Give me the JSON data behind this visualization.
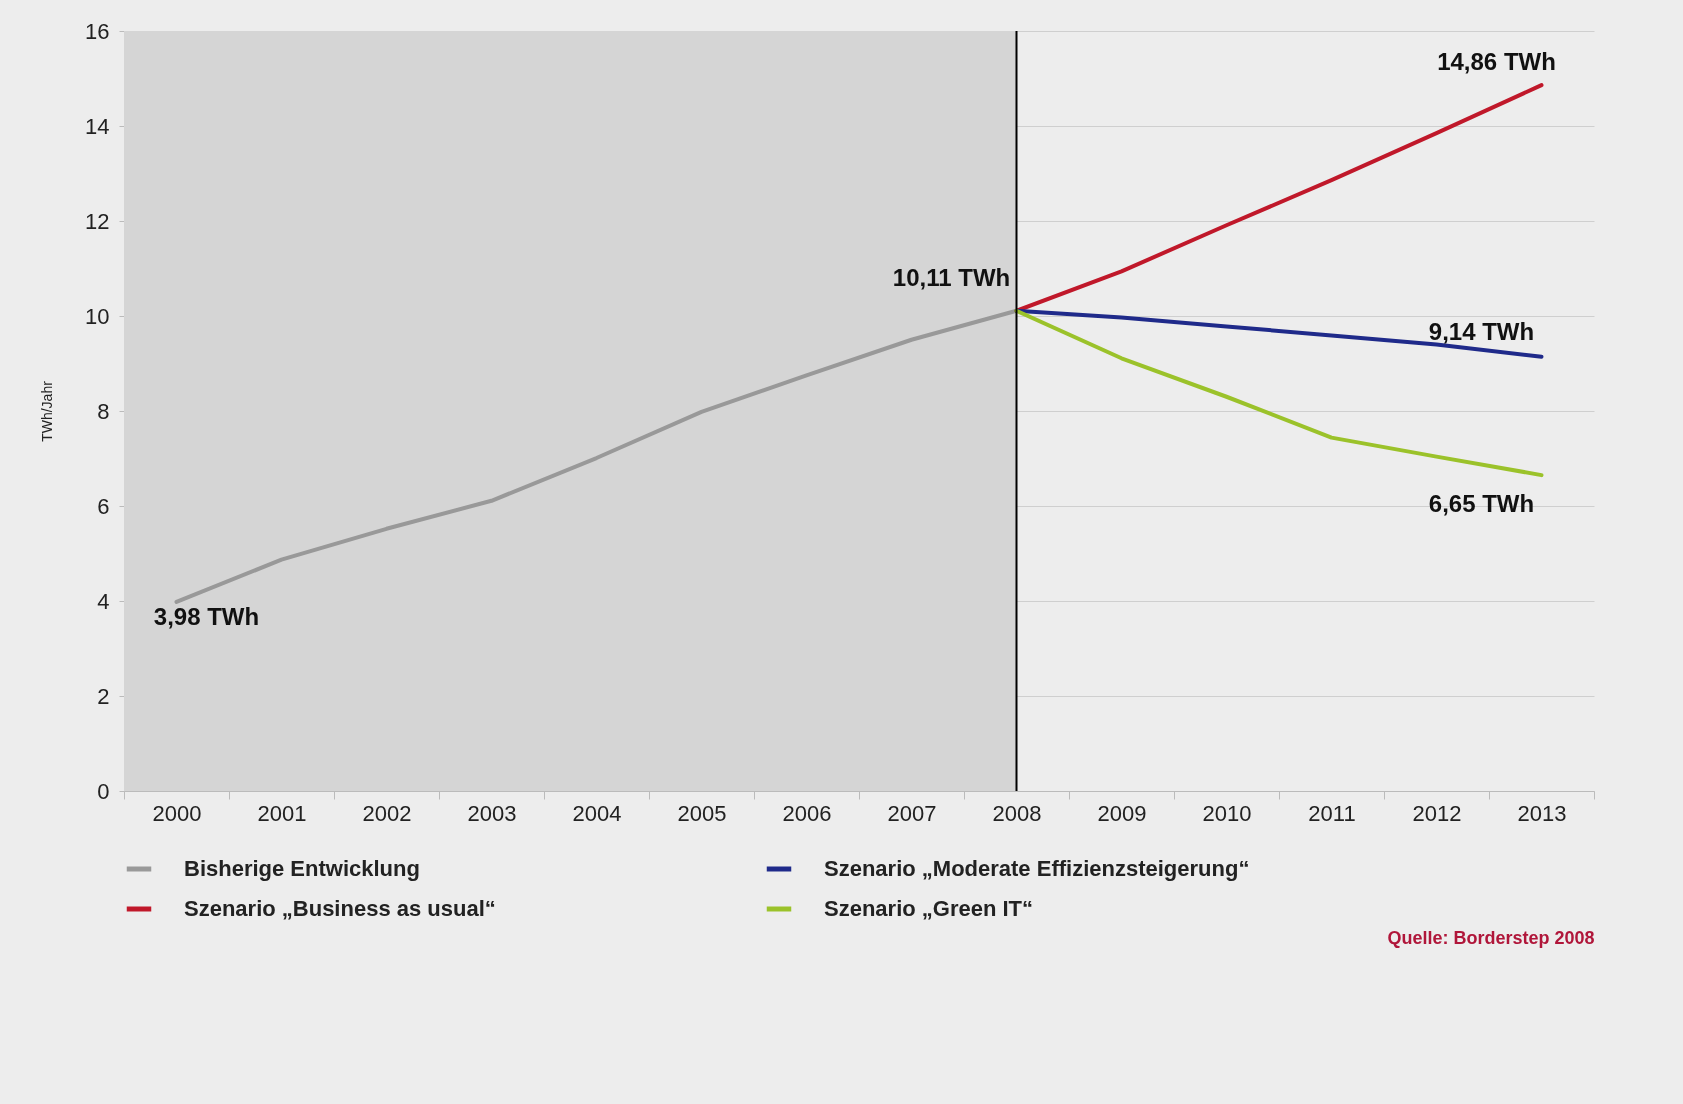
{
  "chart_data": {
    "type": "line",
    "ylabel": "TWh/Jahr",
    "categories": [
      "2000",
      "2001",
      "2002",
      "2003",
      "2004",
      "2005",
      "2006",
      "2007",
      "2008",
      "2009",
      "2010",
      "2011",
      "2012",
      "2013"
    ],
    "series": [
      {
        "name": "Bisherige Entwicklung",
        "color": "#999999",
        "values": [
          3.98,
          4.87,
          5.52,
          6.11,
          7.01,
          7.98,
          8.75,
          9.5,
          10.11,
          null,
          null,
          null,
          null,
          null
        ]
      },
      {
        "name": "Szenario „Business as usual“",
        "color": "#c0182a",
        "values": [
          null,
          null,
          null,
          null,
          null,
          null,
          null,
          null,
          10.11,
          10.94,
          11.91,
          12.86,
          13.85,
          14.86
        ]
      },
      {
        "name": "Szenario „Moderate Effizienzsteigerung“",
        "color": "#1f2a8a",
        "values": [
          null,
          null,
          null,
          null,
          null,
          null,
          null,
          null,
          10.11,
          9.97,
          9.78,
          9.59,
          9.4,
          9.14
        ]
      },
      {
        "name": "Szenario „Green IT“",
        "color": "#9bc22a",
        "values": [
          null,
          null,
          null,
          null,
          null,
          null,
          null,
          null,
          10.11,
          9.11,
          8.3,
          7.44,
          7.04,
          6.65
        ]
      }
    ],
    "ylim": [
      0,
      16
    ],
    "yticks": [
      0,
      2,
      4,
      6,
      8,
      10,
      12,
      14,
      16
    ],
    "grid": "y",
    "legend": "bottom",
    "bands": [
      {
        "axis": "x",
        "from": "2000",
        "to": "2008",
        "color": "#d5d5d5"
      }
    ],
    "ref_lines": [
      {
        "axis": "x",
        "value": "2008",
        "color": "#000000"
      }
    ],
    "annotations": [
      {
        "text": "3,98 TWh",
        "x": "2000",
        "y": 3.98
      },
      {
        "text": "10,11 TWh",
        "x": "2008",
        "y": 10.11
      },
      {
        "text": "14,86 TWh",
        "x": "2013",
        "y": 14.86
      },
      {
        "text": "9,14 TWh",
        "x": "2013",
        "y": 9.14
      },
      {
        "text": "6,65 TWh",
        "x": "2013",
        "y": 6.65
      },
      "Quelle: Borderstep 2008"
    ]
  }
}
